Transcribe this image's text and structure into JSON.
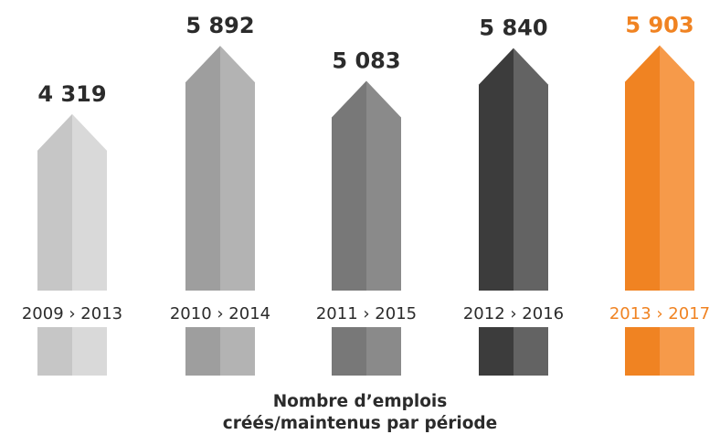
{
  "chart_data": {
    "type": "bar",
    "title": "Nombre d’emplois créés/maintenus par période",
    "title_lines": [
      "Nombre d’emplois",
      "créés/maintenus par période"
    ],
    "categories": [
      "2009 › 2013",
      "2010 › 2014",
      "2011 › 2015",
      "2012 › 2016",
      "2013 › 2017"
    ],
    "values": [
      4319,
      5892,
      5083,
      5840,
      5903
    ],
    "value_labels": [
      "4 319",
      "5 892",
      "5 083",
      "5 840",
      "5 903"
    ],
    "colors": [
      {
        "left": "#c6c6c6",
        "right": "#d9d9d9"
      },
      {
        "left": "#9e9e9e",
        "right": "#b3b3b3"
      },
      {
        "left": "#787878",
        "right": "#8a8a8a"
      },
      {
        "left": "#3c3c3c",
        "right": "#636363"
      },
      {
        "left": "#f08322",
        "right": "#f69a4a"
      }
    ],
    "highlight_index": 4,
    "text_color": "#2b2b2b",
    "highlight_text_color": "#f08322",
    "xlabel": "",
    "ylabel": "",
    "grid": false
  }
}
